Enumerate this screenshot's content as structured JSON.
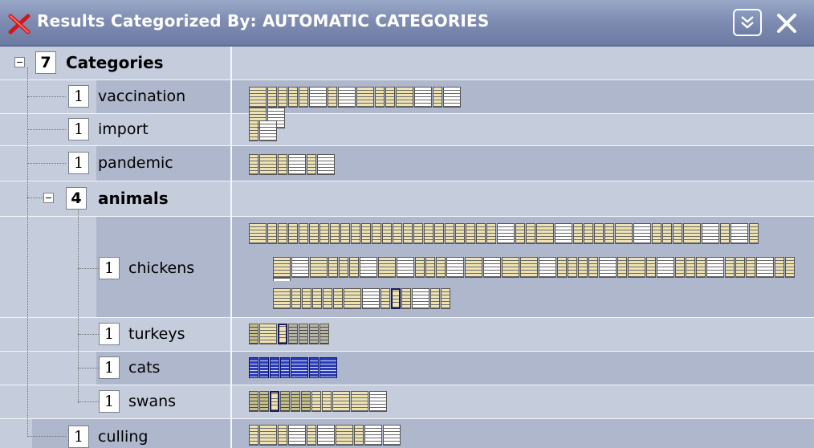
{
  "titlebar": {
    "title": "Results Categorized By: AUTOMATIC CATEGORIES",
    "icon": "red-x-icon",
    "collapse_icon": "double-chevron-down-icon",
    "close_icon": "close-icon"
  },
  "tree": {
    "root": {
      "count": "7",
      "label": "Categories"
    },
    "items": [
      {
        "count": "1",
        "label": "vaccination"
      },
      {
        "count": "1",
        "label": "import"
      },
      {
        "count": "1",
        "label": "pandemic"
      },
      {
        "count": "4",
        "label": "animals"
      },
      {
        "count": "1",
        "label": "chickens"
      },
      {
        "count": "1",
        "label": "turkeys"
      },
      {
        "count": "1",
        "label": "cats"
      },
      {
        "count": "1",
        "label": "swans"
      },
      {
        "count": "1",
        "label": "culling"
      }
    ]
  },
  "colors": {
    "row_light": "#c5ccdc",
    "row_dark": "#aeb7cb",
    "title_bg": "#7f8db3",
    "doc_tan": "#efe3b2",
    "doc_blue": "#1c2c90"
  }
}
